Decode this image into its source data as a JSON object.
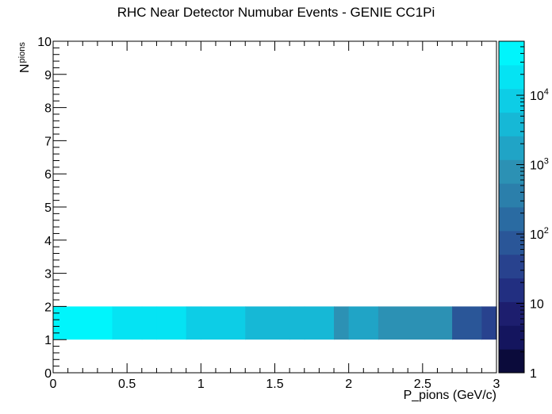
{
  "chart_data": {
    "type": "heatmap",
    "title": "RHC Near Detector Numubar Events - GENIE CC1Pi",
    "xlabel": "P_pions (GeV/c)",
    "ylabel": "N",
    "ylabel_subscript": "pions",
    "xlim": [
      0,
      3
    ],
    "ylim": [
      0,
      10
    ],
    "x_ticks": [
      "0",
      "0.5",
      "1",
      "1.5",
      "2",
      "2.5",
      "3"
    ],
    "y_ticks": [
      "0",
      "1",
      "2",
      "3",
      "4",
      "5",
      "6",
      "7",
      "8",
      "9",
      "10"
    ],
    "z_scale": "log",
    "z_range": [
      1,
      60000
    ],
    "colorbar_ticks": [
      {
        "value": 1,
        "base": "1",
        "exp": ""
      },
      {
        "value": 10,
        "base": "10",
        "exp": ""
      },
      {
        "value": 100,
        "base": "10",
        "exp": "2"
      },
      {
        "value": 1000,
        "base": "10",
        "exp": "3"
      },
      {
        "value": 10000,
        "base": "10",
        "exp": "4"
      }
    ],
    "cells": [
      {
        "x0": 0.0,
        "x1": 0.4,
        "y0": 1,
        "y1": 2,
        "z": 50000
      },
      {
        "x0": 0.4,
        "x1": 0.6,
        "y0": 1,
        "y1": 2,
        "z": 20000
      },
      {
        "x0": 0.6,
        "x1": 0.7,
        "y0": 1,
        "y1": 2,
        "z": 25000
      },
      {
        "x0": 0.7,
        "x1": 0.9,
        "y0": 1,
        "y1": 2,
        "z": 16000
      },
      {
        "x0": 0.9,
        "x1": 1.0,
        "y0": 1,
        "y1": 2,
        "z": 10000
      },
      {
        "x0": 1.0,
        "x1": 1.3,
        "y0": 1,
        "y1": 2,
        "z": 7000
      },
      {
        "x0": 1.3,
        "x1": 1.6,
        "y0": 1,
        "y1": 2,
        "z": 5000
      },
      {
        "x0": 1.6,
        "x1": 1.7,
        "y0": 1,
        "y1": 2,
        "z": 3000
      },
      {
        "x0": 1.7,
        "x1": 1.9,
        "y0": 1,
        "y1": 2,
        "z": 5000
      },
      {
        "x0": 1.9,
        "x1": 2.0,
        "y0": 1,
        "y1": 2,
        "z": 700
      },
      {
        "x0": 2.0,
        "x1": 2.2,
        "y0": 1,
        "y1": 2,
        "z": 2000
      },
      {
        "x0": 2.2,
        "x1": 2.7,
        "y0": 1,
        "y1": 2,
        "z": 1000
      },
      {
        "x0": 2.7,
        "x1": 2.9,
        "y0": 1,
        "y1": 2,
        "z": 100
      },
      {
        "x0": 2.9,
        "x1": 3.0,
        "y0": 1,
        "y1": 2,
        "z": 40
      }
    ],
    "palette": [
      "#0b0b3b",
      "#14155e",
      "#1d1e6e",
      "#222f81",
      "#28428e",
      "#2a5698",
      "#2a6ba2",
      "#2b7fab",
      "#2c91b4",
      "#20a4c6",
      "#16b8d6",
      "#0dcde6",
      "#05e3f3",
      "#00f5fc"
    ]
  }
}
